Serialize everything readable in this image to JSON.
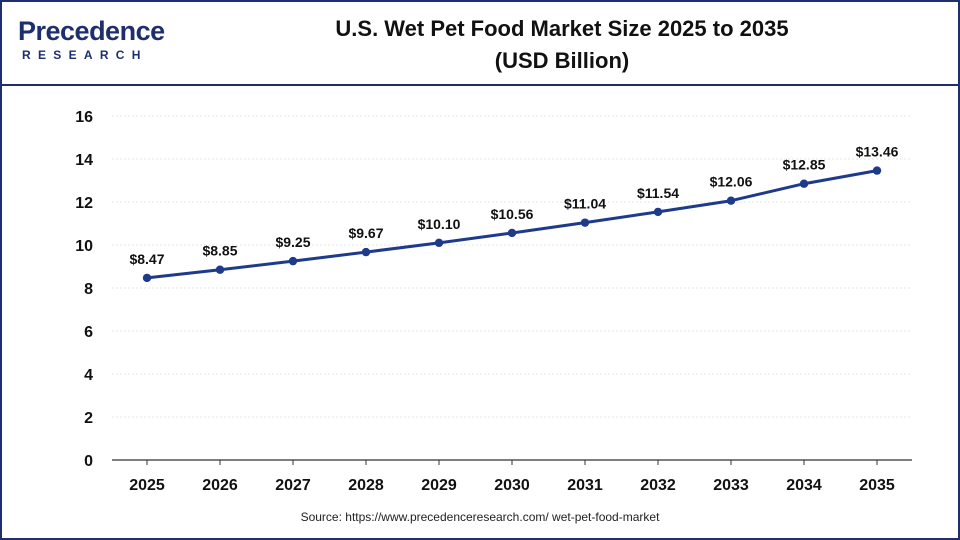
{
  "header": {
    "logo_word": "Precedence",
    "logo_sub": "RESEARCH",
    "title_line1": "U.S. Wet Pet Food Market Size 2025 to 2035",
    "title_line2": "(USD Billion)"
  },
  "chart_data": {
    "type": "line",
    "categories": [
      "2025",
      "2026",
      "2027",
      "2028",
      "2029",
      "2030",
      "2031",
      "2032",
      "2033",
      "2034",
      "2035"
    ],
    "values": [
      8.47,
      8.85,
      9.25,
      9.67,
      10.1,
      10.56,
      11.04,
      11.54,
      12.06,
      12.85,
      13.46
    ],
    "data_labels": [
      "$8.47",
      "$8.85",
      "$9.25",
      "$9.67",
      "$10.10",
      "$10.56",
      "$11.04",
      "$11.54",
      "$12.06",
      "$12.85",
      "$13.46"
    ],
    "y_ticks": [
      "0",
      "2",
      "4",
      "6",
      "8",
      "10",
      "12",
      "14",
      "16"
    ],
    "ylim": [
      0,
      16
    ],
    "title": "U.S. Wet Pet Food Market Size 2025 to 2035 (USD Billion)",
    "xlabel": "",
    "ylabel": "",
    "grid": true,
    "legend": "none",
    "line_color": "#1e3a8a"
  },
  "source": "Source: https://www.precedenceresearch.com/ wet-pet-food-market"
}
